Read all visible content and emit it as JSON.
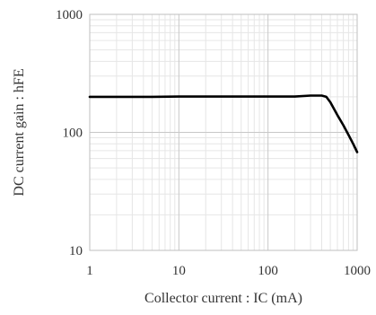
{
  "chart_data": {
    "type": "line",
    "title": "",
    "xlabel": "Collector current : IC (mA)",
    "ylabel": "DC current gain : hFE",
    "xscale": "log",
    "yscale": "log",
    "xlim": [
      1,
      1000
    ],
    "ylim": [
      10,
      1000
    ],
    "grid": true,
    "legend": "none",
    "xticks": [
      "1",
      "10",
      "100",
      "1000"
    ],
    "yticks": [
      "10",
      "100",
      "1000"
    ],
    "series": [
      {
        "color": "#000000",
        "x": [
          1,
          2,
          5,
          10,
          20,
          50,
          100,
          200,
          300,
          400,
          450,
          500,
          600,
          700,
          800,
          900,
          1000
        ],
        "y": [
          200,
          200,
          200,
          201,
          201,
          201,
          201,
          201,
          205,
          205,
          200,
          180,
          140,
          115,
          95,
          80,
          68
        ]
      }
    ]
  }
}
